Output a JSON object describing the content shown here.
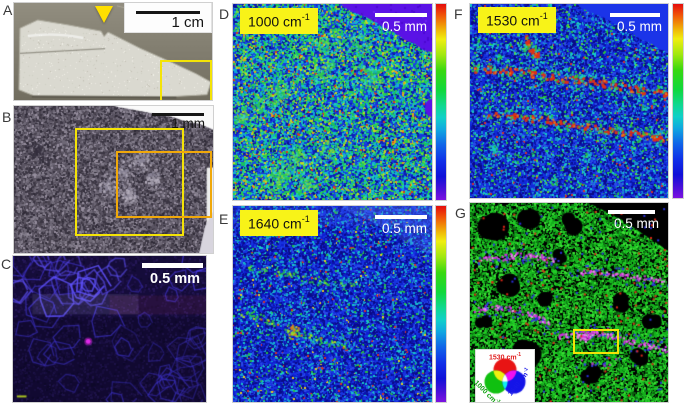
{
  "panels": {
    "A": {
      "label": "A",
      "scale": "1 cm"
    },
    "B": {
      "label": "B",
      "scale": "1 mm"
    },
    "C": {
      "label": "C",
      "scale": "0.5 mm"
    },
    "D": {
      "label": "D",
      "scale": "0.5 mm",
      "wavenumber": {
        "base": "1000 cm",
        "sup": "-1"
      }
    },
    "E": {
      "label": "E",
      "scale": "0.5 mm",
      "wavenumber": {
        "base": "1640 cm",
        "sup": "-1"
      }
    },
    "F": {
      "label": "F",
      "scale": "0.5 mm",
      "wavenumber": {
        "base": "1530 cm",
        "sup": "-1"
      }
    },
    "G": {
      "label": "G",
      "scale": "0.5 mm",
      "legend": {
        "red": {
          "base": "1530 cm",
          "sup": "-1",
          "color": "#e02020"
        },
        "green": {
          "base": "1000 cm",
          "sup": "-1",
          "color": "#0fa00f"
        },
        "blue": {
          "base": "1640 cm",
          "sup": "-1",
          "color": "#1818e8"
        }
      }
    }
  },
  "colors": {
    "roi_yellow": "#f4e306",
    "roi_orange": "#f0a80a",
    "wavenumber_box_bg": "#f8f318",
    "arrow_yellow": "#ffdf00",
    "scalebar_white": "#ffffff",
    "scalebar_black": "#161616",
    "colorbar_top": "#e40c0c",
    "colorbar_bottom": "#7c12e0"
  }
}
